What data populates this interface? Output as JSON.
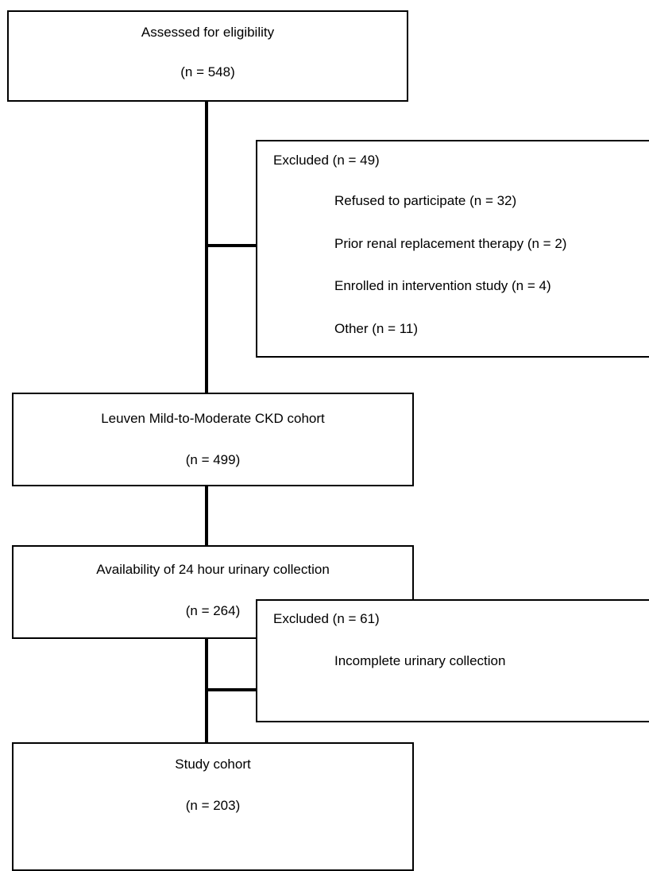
{
  "boxes": {
    "assessed": {
      "title": "Assessed for eligibility",
      "count": "(n = 548)"
    },
    "excluded1": {
      "title": "Excluded (n = 49)",
      "reasons": [
        "Refused to participate (n = 32)",
        "Prior renal replacement therapy (n = 2)",
        "Enrolled in intervention study (n = 4)",
        "Other (n = 11)"
      ]
    },
    "leuven": {
      "title": "Leuven Mild-to-Moderate CKD cohort",
      "count": "(n = 499)"
    },
    "availability": {
      "title": "Availability of 24 hour urinary collection",
      "count": "(n = 264)"
    },
    "excluded2": {
      "title": "Excluded (n = 61)",
      "reasons": [
        "Incomplete urinary collection"
      ]
    },
    "study": {
      "title": "Study cohort",
      "count": "(n = 203)"
    }
  }
}
